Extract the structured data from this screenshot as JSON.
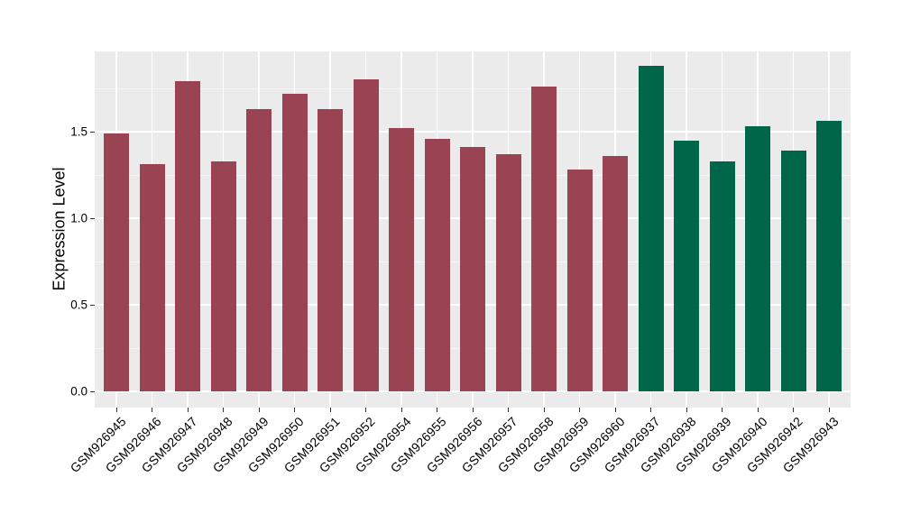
{
  "chart_data": {
    "type": "bar",
    "title": "",
    "xlabel": "",
    "ylabel": "Expression Level",
    "ylim": [
      0,
      1.97
    ],
    "grid": "major and minor horizontal white gridlines plus vertical white gridlines at bar centers, on grey panel",
    "legend_position": "none",
    "panel_background": "#EBEBEB",
    "gridline_color": "#FFFFFF",
    "axis_text_color": "#000000",
    "yticks": [
      {
        "label": "0.0",
        "value": 0.0
      },
      {
        "label": "0.5",
        "value": 0.5
      },
      {
        "label": "1.0",
        "value": 1.0
      },
      {
        "label": "1.5",
        "value": 1.5
      }
    ],
    "minor_ytick_values": [
      0.25,
      0.75,
      1.25,
      1.75
    ],
    "group_colors": {
      "maroon": "#9A4352",
      "green": "#006649"
    },
    "bars": [
      {
        "label": "GSM926945",
        "value": 1.49,
        "group": "maroon"
      },
      {
        "label": "GSM926946",
        "value": 1.31,
        "group": "maroon"
      },
      {
        "label": "GSM926947",
        "value": 1.79,
        "group": "maroon"
      },
      {
        "label": "GSM926948",
        "value": 1.33,
        "group": "maroon"
      },
      {
        "label": "GSM926949",
        "value": 1.63,
        "group": "maroon"
      },
      {
        "label": "GSM926950",
        "value": 1.72,
        "group": "maroon"
      },
      {
        "label": "GSM926951",
        "value": 1.63,
        "group": "maroon"
      },
      {
        "label": "GSM926952",
        "value": 1.8,
        "group": "maroon"
      },
      {
        "label": "GSM926954",
        "value": 1.52,
        "group": "maroon"
      },
      {
        "label": "GSM926955",
        "value": 1.46,
        "group": "maroon"
      },
      {
        "label": "GSM926956",
        "value": 1.41,
        "group": "maroon"
      },
      {
        "label": "GSM926957",
        "value": 1.37,
        "group": "maroon"
      },
      {
        "label": "GSM926958",
        "value": 1.76,
        "group": "maroon"
      },
      {
        "label": "GSM926959",
        "value": 1.28,
        "group": "maroon"
      },
      {
        "label": "GSM926960",
        "value": 1.36,
        "group": "maroon"
      },
      {
        "label": "GSM926937",
        "value": 1.88,
        "group": "green"
      },
      {
        "label": "GSM926938",
        "value": 1.45,
        "group": "green"
      },
      {
        "label": "GSM926939",
        "value": 1.33,
        "group": "green"
      },
      {
        "label": "GSM926940",
        "value": 1.53,
        "group": "green"
      },
      {
        "label": "GSM926942",
        "value": 1.39,
        "group": "green"
      },
      {
        "label": "GSM926943",
        "value": 1.56,
        "group": "green"
      }
    ]
  }
}
